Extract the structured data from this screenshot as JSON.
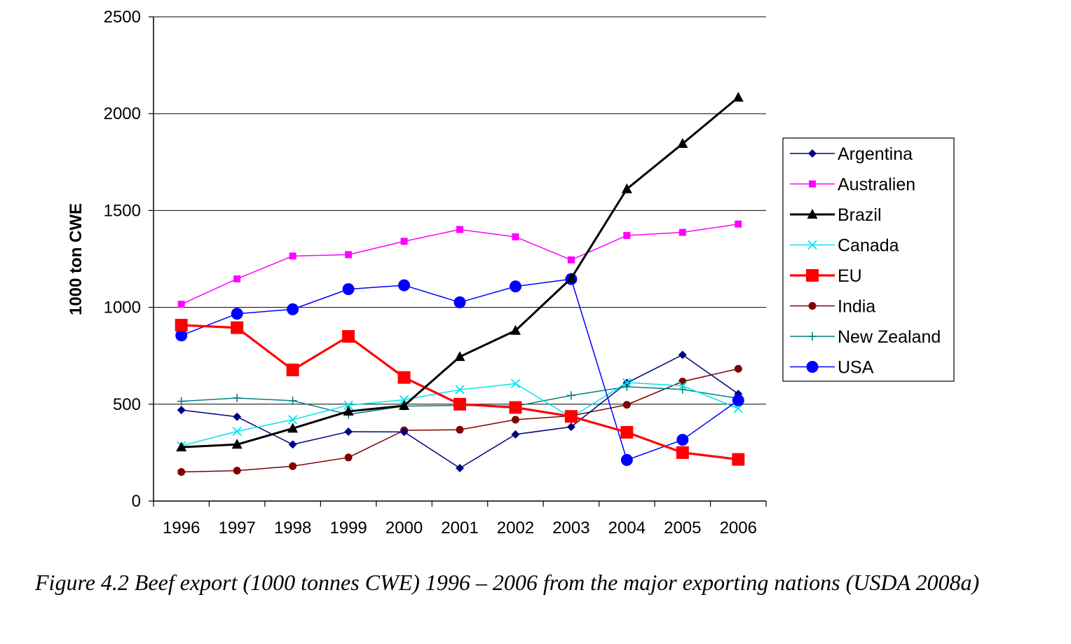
{
  "caption": "Figure 4.2 Beef export (1000 tonnes CWE) 1996 – 2006 from the major exporting nations (USDA 2008a)",
  "chart_data": {
    "type": "line",
    "title": "",
    "xlabel": "",
    "ylabel": "1000 ton CWE",
    "categories": [
      "1996",
      "1997",
      "1998",
      "1999",
      "2000",
      "2001",
      "2002",
      "2003",
      "2004",
      "2005",
      "2006"
    ],
    "ylim": [
      0,
      2500
    ],
    "yticks": [
      "0",
      "500",
      "1000",
      "1500",
      "2000",
      "2500"
    ],
    "grid": "horizontal",
    "legend": "right",
    "series": [
      {
        "name": "Argentina",
        "color": "#000080",
        "marker": "diamond",
        "values": [
          470,
          435,
          292,
          358,
          357,
          170,
          344,
          383,
          610,
          755,
          553
        ]
      },
      {
        "name": "Australien",
        "color": "#ff00ff",
        "marker": "square",
        "values": [
          1016,
          1147,
          1265,
          1272,
          1341,
          1402,
          1364,
          1245,
          1371,
          1387,
          1430
        ]
      },
      {
        "name": "Brazil",
        "color": "#000000",
        "marker": "triangle",
        "values": [
          278,
          292,
          375,
          463,
          492,
          745,
          880,
          1150,
          1611,
          1845,
          2084
        ]
      },
      {
        "name": "Canada",
        "color": "#00e5ee",
        "marker": "x",
        "values": [
          285,
          360,
          420,
          495,
          523,
          575,
          606,
          432,
          612,
          595,
          478
        ]
      },
      {
        "name": "EU",
        "color": "#ff0000",
        "marker": "bigsquare",
        "values": [
          908,
          895,
          677,
          850,
          638,
          500,
          483,
          437,
          355,
          250,
          215
        ]
      },
      {
        "name": "India",
        "color": "#800000",
        "marker": "dot",
        "values": [
          150,
          157,
          180,
          225,
          365,
          368,
          420,
          440,
          497,
          617,
          683
        ]
      },
      {
        "name": "New Zealand",
        "color": "#008080",
        "marker": "plus",
        "values": [
          515,
          532,
          518,
          447,
          490,
          494,
          490,
          545,
          590,
          576,
          530
        ]
      },
      {
        "name": "USA",
        "color": "#0000ff",
        "marker": "circle",
        "values": [
          855,
          967,
          990,
          1094,
          1114,
          1026,
          1108,
          1146,
          212,
          316,
          520
        ]
      }
    ]
  }
}
